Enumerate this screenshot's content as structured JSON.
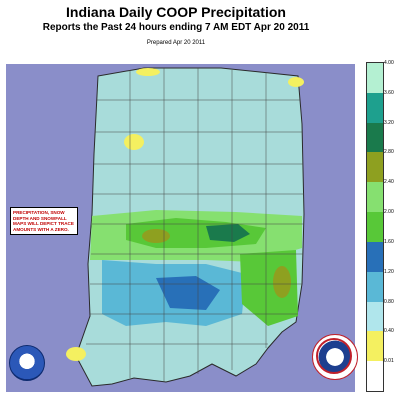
{
  "title": "Indiana Daily COOP Precipitation",
  "subtitle": "Reports the Past 24 hours ending 7 AM EDT Apr 20  2011",
  "prepared": "Prepared Apr 20 2011",
  "note": "PRECIPITATION, SNOW DEPTH AND SNOWFALL MAPS WILL DEPICT TRACE AMOUNTS WITH A ZERO.",
  "legend": {
    "labels": [
      "4.00",
      "3.60",
      "3.20",
      "2.80",
      "2.40",
      "2.00",
      "1.60",
      "1.20",
      "0.80",
      "0.40",
      "0.01"
    ],
    "colors": [
      "#b4f0d2",
      "#1ea08e",
      "#1a7a4c",
      "#8ea020",
      "#86e070",
      "#58c838",
      "#2870b8",
      "#5ab8d6",
      "#b0e6ec",
      "#f4f060",
      "#ffffff"
    ]
  },
  "logos": {
    "noaa": "noaa-logo",
    "nws": "nws-logo"
  },
  "colors": {
    "background": "#8a8ec9",
    "state_low": "#a8dcda",
    "border": "#2a2a2a"
  }
}
